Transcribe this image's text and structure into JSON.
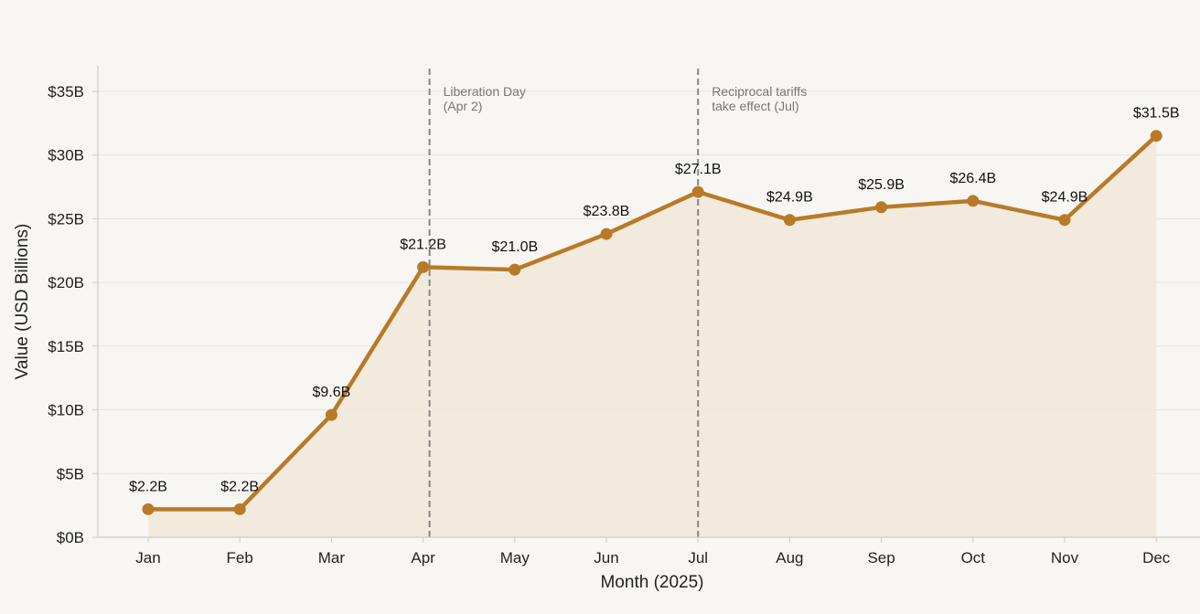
{
  "chart_data": {
    "type": "line",
    "title": "",
    "xlabel": "Month (2025)",
    "ylabel": "Value (USD Billions)",
    "categories": [
      "Jan",
      "Feb",
      "Mar",
      "Apr",
      "May",
      "Jun",
      "Jul",
      "Aug",
      "Sep",
      "Oct",
      "Nov",
      "Dec"
    ],
    "values": [
      2.2,
      2.2,
      9.6,
      21.2,
      21.0,
      23.8,
      27.1,
      24.9,
      25.9,
      26.4,
      24.9,
      31.5
    ],
    "value_labels": [
      "$2.2B",
      "$2.2B",
      "$9.6B",
      "$21.2B",
      "$21.0B",
      "$23.8B",
      "$27.1B",
      "$24.9B",
      "$25.9B",
      "$26.4B",
      "$24.9B",
      "$31.5B"
    ],
    "ylim": [
      0,
      37
    ],
    "yticks": [
      0,
      5,
      10,
      15,
      20,
      25,
      30,
      35
    ],
    "ytick_labels": [
      "$0B",
      "$5B",
      "$10B",
      "$15B",
      "$20B",
      "$25B",
      "$30B",
      "$35B"
    ],
    "grid": true,
    "area_fill": true,
    "annotations": [
      {
        "category_index": 3.07,
        "lines": [
          "Liberation Day",
          "(Apr 2)"
        ]
      },
      {
        "category_index": 6.0,
        "lines": [
          "Reciprocal tariffs",
          "take effect (Jul)"
        ]
      }
    ],
    "colors": {
      "line": "#b87a28",
      "fill": "#f2e8da",
      "annotation_line": "#8a8580",
      "grid": "#e8e5df",
      "axis": "#cfcbc4",
      "background": "#f8f6f2"
    }
  }
}
